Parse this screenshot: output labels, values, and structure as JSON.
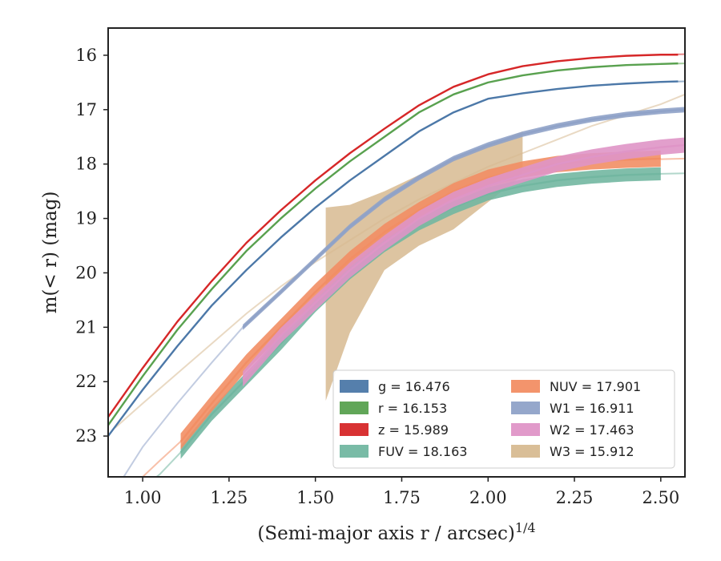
{
  "chart_data": {
    "type": "line",
    "xlabel": "(Semi-major axis r / arcsec)",
    "xlabel_exponent": "1/4",
    "ylabel": "m(< r) (mag)",
    "xlim": [
      0.9,
      2.57
    ],
    "ylim": [
      23.75,
      15.5
    ],
    "y_inverted": true,
    "xticks": [
      "1.00",
      "1.25",
      "1.50",
      "1.75",
      "2.00",
      "2.25",
      "2.50"
    ],
    "xtick_values": [
      1.0,
      1.25,
      1.5,
      1.75,
      2.0,
      2.25,
      2.5
    ],
    "yticks": [
      "16",
      "17",
      "18",
      "19",
      "20",
      "21",
      "22",
      "23"
    ],
    "ytick_values": [
      16,
      17,
      18,
      19,
      20,
      21,
      22,
      23
    ],
    "legend_position": "lower-right",
    "series": [
      {
        "key": "g",
        "legend_label": "g = 16.476",
        "color": "#4c78a8",
        "x": [
          0.9,
          1.0,
          1.1,
          1.2,
          1.3,
          1.4,
          1.5,
          1.6,
          1.7,
          1.8,
          1.9,
          2.0,
          2.1,
          2.2,
          2.3,
          2.4,
          2.5,
          2.55
        ],
        "y": [
          23.0,
          22.15,
          21.35,
          20.6,
          19.95,
          19.35,
          18.8,
          18.3,
          17.85,
          17.4,
          17.05,
          16.8,
          16.7,
          16.62,
          16.56,
          16.52,
          16.49,
          16.48
        ],
        "faint_x": [
          2.5,
          2.57
        ],
        "faint_y": [
          16.49,
          16.48
        ]
      },
      {
        "key": "r",
        "legend_label": "r = 16.153",
        "color": "#59a14f",
        "x": [
          0.9,
          1.0,
          1.1,
          1.2,
          1.3,
          1.4,
          1.5,
          1.6,
          1.7,
          1.8,
          1.9,
          2.0,
          2.1,
          2.2,
          2.3,
          2.4,
          2.5,
          2.55
        ],
        "y": [
          22.8,
          21.9,
          21.05,
          20.3,
          19.6,
          19.0,
          18.45,
          17.95,
          17.5,
          17.05,
          16.72,
          16.5,
          16.37,
          16.28,
          16.22,
          16.18,
          16.16,
          16.15
        ],
        "faint_x": [
          2.5,
          2.57
        ],
        "faint_y": [
          16.16,
          16.15
        ]
      },
      {
        "key": "z",
        "legend_label": "z = 15.989",
        "color": "#d62728",
        "x": [
          0.9,
          1.0,
          1.1,
          1.2,
          1.3,
          1.4,
          1.5,
          1.6,
          1.7,
          1.8,
          1.9,
          2.0,
          2.1,
          2.2,
          2.3,
          2.4,
          2.5,
          2.55
        ],
        "y": [
          22.65,
          21.75,
          20.9,
          20.15,
          19.45,
          18.85,
          18.3,
          17.8,
          17.35,
          16.92,
          16.58,
          16.35,
          16.2,
          16.11,
          16.05,
          16.01,
          15.99,
          15.99
        ],
        "faint_x": [
          2.5,
          2.57
        ],
        "faint_y": [
          15.99,
          15.98
        ]
      },
      {
        "key": "FUV",
        "legend_label": "FUV = 18.163",
        "color": "#72b7a1",
        "x": [
          1.11,
          1.2,
          1.3,
          1.4,
          1.5,
          1.6,
          1.7,
          1.8,
          1.9,
          2.0,
          2.1,
          2.2,
          2.3,
          2.4,
          2.5
        ],
        "y": [
          23.3,
          22.6,
          21.95,
          21.3,
          20.6,
          20.0,
          19.5,
          19.1,
          18.8,
          18.55,
          18.4,
          18.3,
          18.24,
          18.2,
          18.18
        ],
        "band": 0.12,
        "faint_x": [
          0.95,
          1.0,
          1.05,
          1.11
        ],
        "faint_y": [
          24.2,
          23.95,
          23.7,
          23.3
        ],
        "faint_x2": [
          2.5,
          2.57
        ],
        "faint_y2": [
          18.18,
          18.17
        ]
      },
      {
        "key": "NUV",
        "legend_label": "NUV = 17.901",
        "color": "#f28e64",
        "x": [
          1.11,
          1.2,
          1.3,
          1.4,
          1.5,
          1.6,
          1.7,
          1.8,
          1.9,
          2.0,
          2.1,
          2.2,
          2.3,
          2.4,
          2.5
        ],
        "y": [
          23.1,
          22.4,
          21.65,
          21.0,
          20.35,
          19.75,
          19.25,
          18.85,
          18.5,
          18.25,
          18.1,
          18.0,
          17.95,
          17.92,
          17.9
        ],
        "band": 0.15,
        "faint_x": [
          0.95,
          1.0,
          1.05,
          1.11
        ],
        "faint_y": [
          24.0,
          23.75,
          23.45,
          23.1
        ],
        "faint_x2": [
          2.5,
          2.57
        ],
        "faint_y2": [
          17.91,
          17.9
        ]
      },
      {
        "key": "W1",
        "legend_label": "W1 = 16.911",
        "color": "#8fa2c8",
        "x": [
          1.29,
          1.4,
          1.5,
          1.6,
          1.7,
          1.8,
          1.9,
          2.0,
          2.1,
          2.2,
          2.3,
          2.4,
          2.5,
          2.57
        ],
        "y": [
          21.0,
          20.35,
          19.75,
          19.15,
          18.65,
          18.25,
          17.9,
          17.65,
          17.45,
          17.3,
          17.18,
          17.09,
          17.03,
          17.0
        ],
        "band": 0.05,
        "faint_x": [
          0.92,
          1.0,
          1.1,
          1.2,
          1.29
        ],
        "faint_y": [
          24.0,
          23.2,
          22.4,
          21.65,
          21.0
        ]
      },
      {
        "key": "W2",
        "legend_label": "W2 = 17.463",
        "color": "#df95c7",
        "x": [
          1.29,
          1.4,
          1.5,
          1.6,
          1.7,
          1.8,
          1.9,
          2.0,
          2.1,
          2.2,
          2.3,
          2.4,
          2.5,
          2.57
        ],
        "y": [
          21.95,
          21.15,
          20.55,
          19.95,
          19.45,
          19.0,
          18.65,
          18.4,
          18.2,
          18.0,
          17.87,
          17.77,
          17.69,
          17.65
        ],
        "band": 0.14
      },
      {
        "key": "W3",
        "legend_label": "W3 = 15.912",
        "color": "#d7ba91",
        "fill_x_upper": [
          1.53,
          1.53,
          1.6,
          1.7,
          1.8,
          1.9,
          2.0,
          2.1,
          2.1
        ],
        "fill_y_upper": [
          22.35,
          18.8,
          18.75,
          18.5,
          18.2,
          17.9,
          17.65,
          17.4,
          18.2
        ],
        "fill_x_lower": [
          2.1,
          2.0,
          1.9,
          1.8,
          1.7,
          1.6,
          1.53
        ],
        "fill_y_lower": [
          18.2,
          18.7,
          19.2,
          19.5,
          19.95,
          21.1,
          22.35
        ],
        "faint_x": [
          0.92,
          1.0,
          1.1,
          1.2,
          1.3,
          1.4,
          1.5,
          1.6,
          1.7,
          1.8,
          1.9,
          2.0,
          2.1,
          2.2,
          2.3,
          2.4,
          2.5,
          2.57
        ],
        "faint_y": [
          22.85,
          22.4,
          21.85,
          21.3,
          20.75,
          20.25,
          19.8,
          19.4,
          19.0,
          18.65,
          18.35,
          18.05,
          17.8,
          17.55,
          17.3,
          17.1,
          16.9,
          16.72
        ]
      }
    ]
  }
}
